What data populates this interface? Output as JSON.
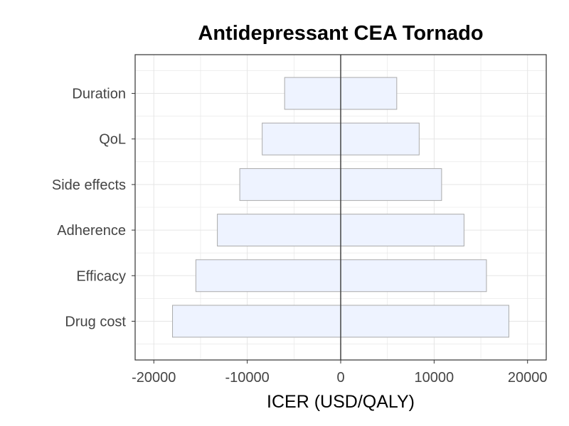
{
  "chart_data": {
    "type": "bar",
    "orientation": "horizontal",
    "subtype": "tornado",
    "title": "Antidepressant CEA Tornado",
    "xlabel": "ICER (USD/QALY)",
    "ylabel": "",
    "xlim": [
      -22000,
      22000
    ],
    "x_ticks": [
      -20000,
      -10000,
      0,
      10000,
      20000
    ],
    "x_tick_labels": [
      "-20000",
      "-10000",
      "0",
      "10000",
      "20000"
    ],
    "categories": [
      "Drug cost",
      "Efficacy",
      "Adherence",
      "Side effects",
      "QoL",
      "Duration"
    ],
    "low": [
      -18000,
      -15500,
      -13200,
      -10800,
      -8400,
      -6000
    ],
    "high": [
      18000,
      15600,
      13200,
      10800,
      8400,
      6000
    ],
    "reference_line": 0,
    "grid": true,
    "legend": "none",
    "colors": {
      "bar_fill": "#eef3ff",
      "bar_stroke": "#aaaaaa",
      "reference_line": "#444444",
      "grid": "#e5e5e5",
      "panel_border": "#333333"
    }
  }
}
